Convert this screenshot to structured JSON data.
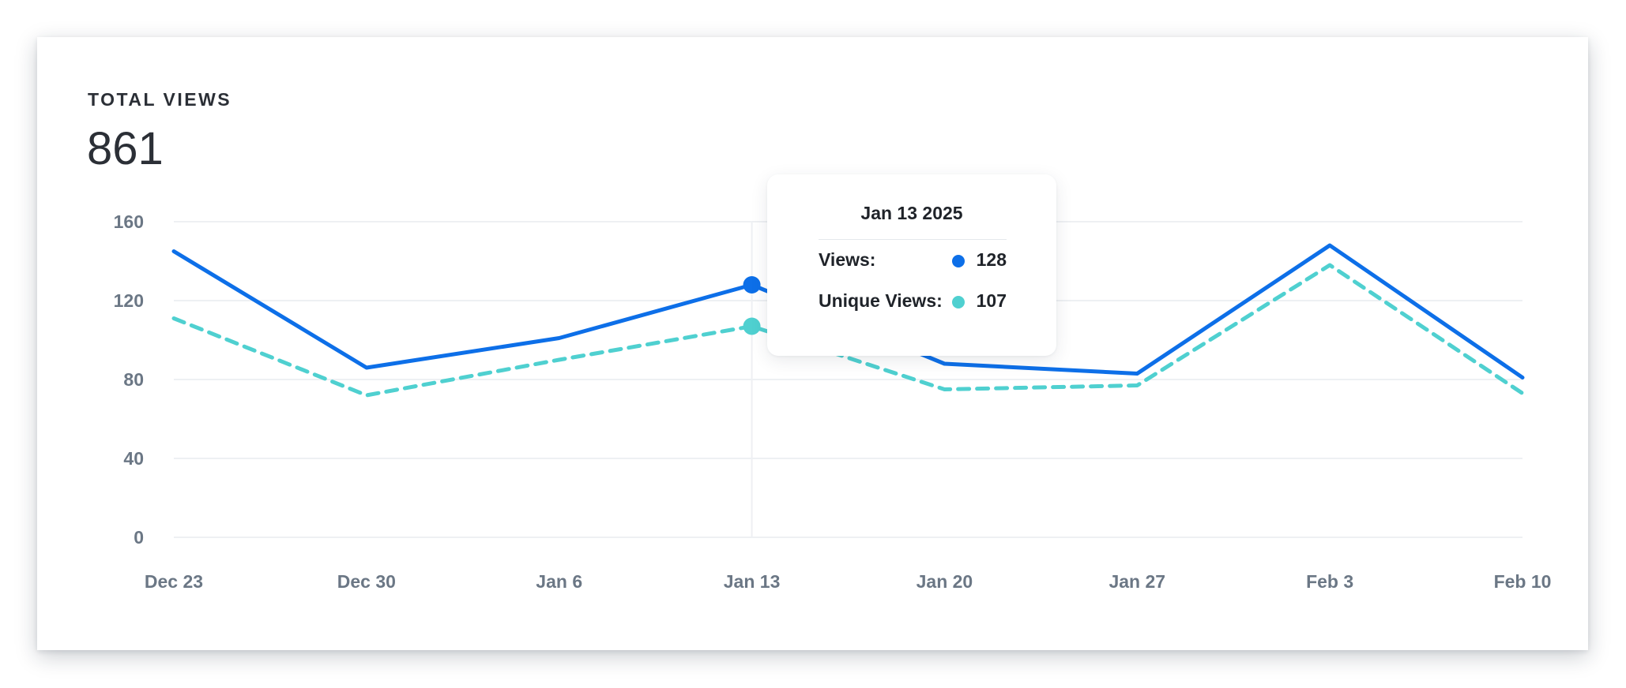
{
  "metric": {
    "label": "TOTAL VIEWS",
    "value": "861"
  },
  "tooltip": {
    "date": "Jan 13 2025",
    "rows": [
      {
        "label": "Views:",
        "value": "128",
        "color": "#0d6fe8"
      },
      {
        "label": "Unique Views:",
        "value": "107",
        "color": "#4fd0d0"
      }
    ]
  },
  "chart_data": {
    "type": "line",
    "categories": [
      "Dec 23",
      "Dec 30",
      "Jan 6",
      "Jan 13",
      "Jan 20",
      "Jan 27",
      "Feb 3",
      "Feb 10"
    ],
    "series": [
      {
        "name": "Views",
        "values": [
          145,
          86,
          101,
          128,
          88,
          83,
          148,
          81
        ],
        "color": "#0d6fe8",
        "style": "solid"
      },
      {
        "name": "Unique Views",
        "values": [
          111,
          72,
          90,
          107,
          75,
          77,
          138,
          73
        ],
        "color": "#4fd0d0",
        "style": "dashed"
      }
    ],
    "yticks": [
      0,
      40,
      80,
      120,
      160
    ],
    "ylim": [
      0,
      160
    ],
    "grid": true,
    "highlighted_category": "Jan 13",
    "title": "",
    "xlabel": "",
    "ylabel": ""
  }
}
